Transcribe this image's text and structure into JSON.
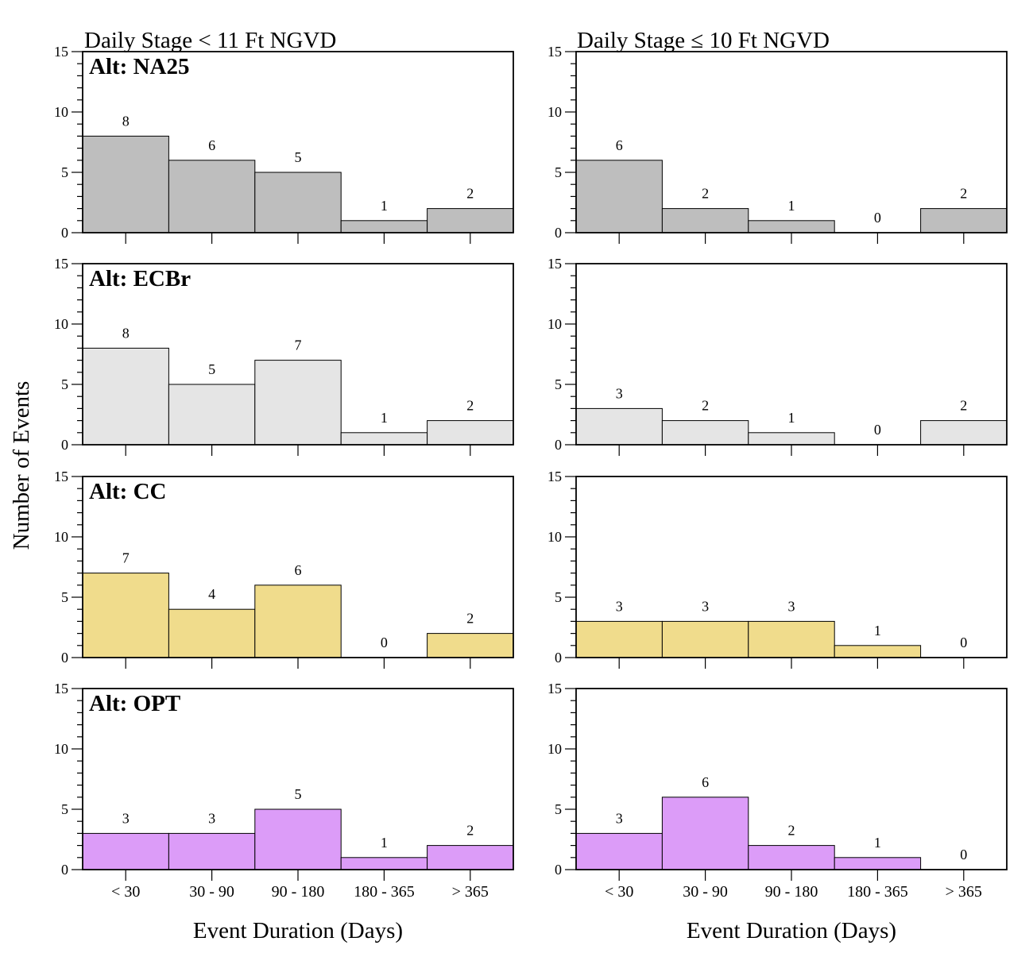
{
  "column_titles": [
    "Daily Stage < 11 Ft NGVD",
    "Daily Stage ≤ 10 Ft NGVD"
  ],
  "ylabel": "Number of Events",
  "xlabel": "Event Duration (Days)",
  "y_ticks": [
    0,
    5,
    10,
    15
  ],
  "colors": {
    "NA25": "#bebebe",
    "ECBr": "#e5e5e5",
    "CC": "#f0dc8c",
    "OPT": "#dc9cf8",
    "outline": "#000000"
  },
  "chart_data": [
    {
      "type": "bar",
      "panel": "Alt: NA25",
      "alternative": "NA25",
      "column": "Daily Stage < 11 Ft NGVD",
      "categories": [
        "< 30",
        "30 - 90",
        "90 - 180",
        "180 - 365",
        "> 365"
      ],
      "values": [
        8,
        6,
        5,
        1,
        2
      ],
      "ylim": [
        0,
        15
      ]
    },
    {
      "type": "bar",
      "panel": "",
      "alternative": "NA25",
      "column": "Daily Stage ≤ 10 Ft NGVD",
      "categories": [
        "< 30",
        "30 - 90",
        "90 - 180",
        "180 - 365",
        "> 365"
      ],
      "values": [
        6,
        2,
        1,
        0,
        2
      ],
      "ylim": [
        0,
        15
      ]
    },
    {
      "type": "bar",
      "panel": "Alt: ECBr",
      "alternative": "ECBr",
      "column": "Daily Stage < 11 Ft NGVD",
      "categories": [
        "< 30",
        "30 - 90",
        "90 - 180",
        "180 - 365",
        "> 365"
      ],
      "values": [
        8,
        5,
        7,
        1,
        2
      ],
      "ylim": [
        0,
        15
      ]
    },
    {
      "type": "bar",
      "panel": "",
      "alternative": "ECBr",
      "column": "Daily Stage ≤ 10 Ft NGVD",
      "categories": [
        "< 30",
        "30 - 90",
        "90 - 180",
        "180 - 365",
        "> 365"
      ],
      "values": [
        3,
        2,
        1,
        0,
        2
      ],
      "ylim": [
        0,
        15
      ]
    },
    {
      "type": "bar",
      "panel": "Alt: CC",
      "alternative": "CC",
      "column": "Daily Stage < 11 Ft NGVD",
      "categories": [
        "< 30",
        "30 - 90",
        "90 - 180",
        "180 - 365",
        "> 365"
      ],
      "values": [
        7,
        4,
        6,
        0,
        2
      ],
      "ylim": [
        0,
        15
      ]
    },
    {
      "type": "bar",
      "panel": "",
      "alternative": "CC",
      "column": "Daily Stage ≤ 10 Ft NGVD",
      "categories": [
        "< 30",
        "30 - 90",
        "90 - 180",
        "180 - 365",
        "> 365"
      ],
      "values": [
        3,
        3,
        3,
        1,
        0
      ],
      "ylim": [
        0,
        15
      ]
    },
    {
      "type": "bar",
      "panel": "Alt: OPT",
      "alternative": "OPT",
      "column": "Daily Stage < 11 Ft NGVD",
      "categories": [
        "< 30",
        "30 - 90",
        "90 - 180",
        "180 - 365",
        "> 365"
      ],
      "values": [
        3,
        3,
        5,
        1,
        2
      ],
      "ylim": [
        0,
        15
      ]
    },
    {
      "type": "bar",
      "panel": "",
      "alternative": "OPT",
      "column": "Daily Stage ≤ 10 Ft NGVD",
      "categories": [
        "< 30",
        "30 - 90",
        "90 - 180",
        "180 - 365",
        "> 365"
      ],
      "values": [
        3,
        6,
        2,
        1,
        0
      ],
      "ylim": [
        0,
        15
      ]
    }
  ]
}
